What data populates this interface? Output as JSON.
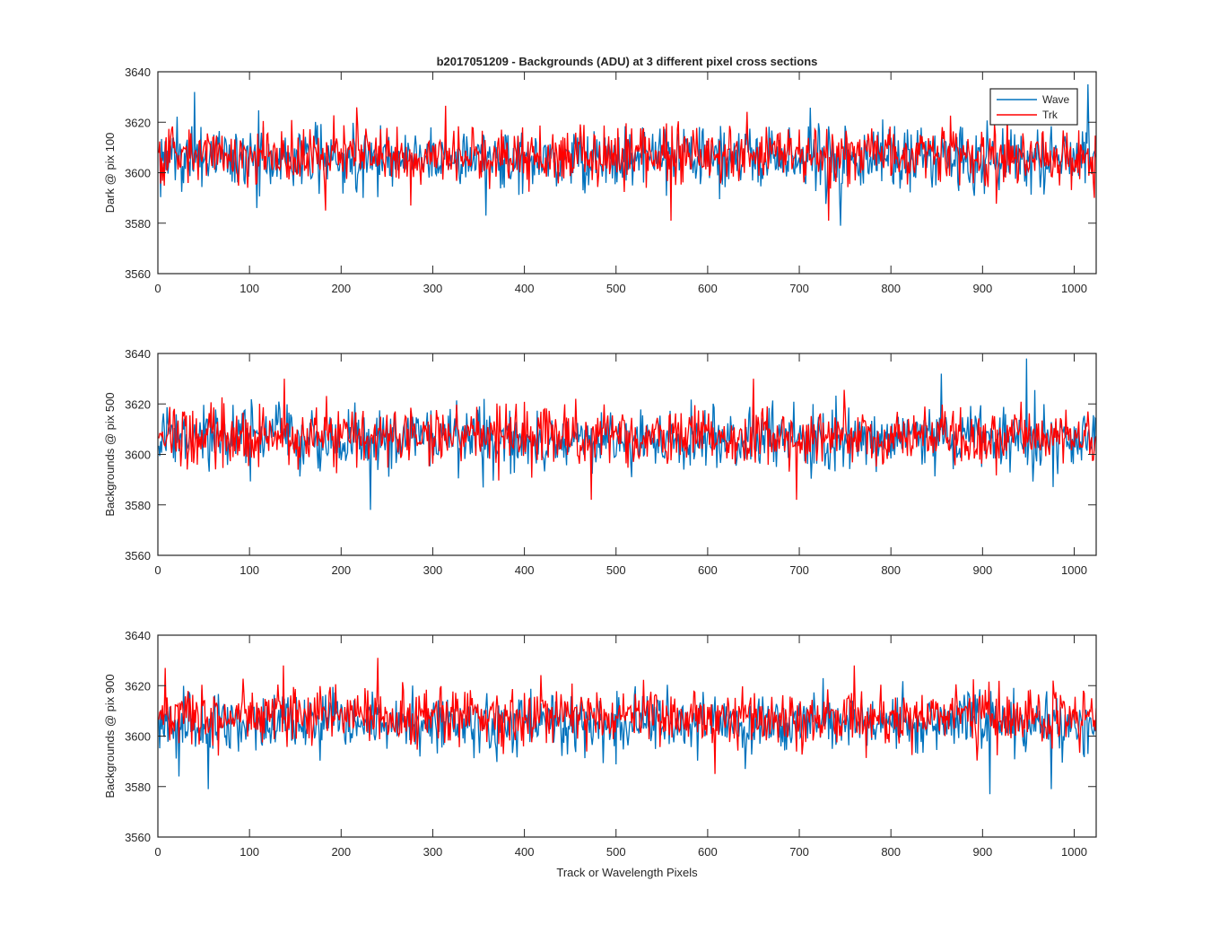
{
  "figure": {
    "title": "b2017051209 - Backgrounds (ADU) at 3 different pixel cross sections",
    "xlabel": "Track or Wavelength Pixels"
  },
  "legend": {
    "placement": "top-right of first panel",
    "entries": [
      {
        "label": "Wave",
        "color": "#0072BD"
      },
      {
        "label": "Trk",
        "color": "#FF0000"
      }
    ]
  },
  "chart_data": [
    {
      "type": "line",
      "ylabel": "Dark @ pix 100",
      "xlim": [
        0,
        1024
      ],
      "ylim": [
        3560,
        3640
      ],
      "xticks": [
        0,
        100,
        200,
        300,
        400,
        500,
        600,
        700,
        800,
        900,
        1000
      ],
      "yticks": [
        3560,
        3580,
        3600,
        3620,
        3640
      ],
      "grid": false,
      "series": [
        {
          "name": "Wave",
          "color": "#0072BD",
          "mean": 3606,
          "std": 6.2,
          "x_step": 1,
          "x_start": 1,
          "x_end": 1024,
          "notable_points": [
            {
              "x": 40,
              "y": 3632
            },
            {
              "x": 108,
              "y": 3586
            },
            {
              "x": 358,
              "y": 3583
            },
            {
              "x": 745,
              "y": 3579
            },
            {
              "x": 1015,
              "y": 3635
            }
          ]
        },
        {
          "name": "Trk",
          "color": "#FF0000",
          "mean": 3607,
          "std": 5.6,
          "x_step": 1,
          "x_start": 1,
          "x_end": 1024,
          "notable_points": [
            {
              "x": 183,
              "y": 3585
            },
            {
              "x": 560,
              "y": 3581
            },
            {
              "x": 732,
              "y": 3581
            },
            {
              "x": 1022,
              "y": 3590
            }
          ]
        }
      ]
    },
    {
      "type": "line",
      "ylabel": "Backgrounds @ pix 500",
      "xlim": [
        0,
        1024
      ],
      "ylim": [
        3560,
        3640
      ],
      "xticks": [
        0,
        100,
        200,
        300,
        400,
        500,
        600,
        700,
        800,
        900,
        1000
      ],
      "yticks": [
        3560,
        3580,
        3600,
        3620,
        3640
      ],
      "grid": false,
      "series": [
        {
          "name": "Wave",
          "color": "#0072BD",
          "mean": 3606,
          "std": 6.0,
          "x_step": 1,
          "x_start": 1,
          "x_end": 1024,
          "notable_points": [
            {
              "x": 232,
              "y": 3578
            },
            {
              "x": 855,
              "y": 3632
            },
            {
              "x": 948,
              "y": 3638
            }
          ]
        },
        {
          "name": "Trk",
          "color": "#FF0000",
          "mean": 3607,
          "std": 5.6,
          "x_step": 1,
          "x_start": 1,
          "x_end": 1024,
          "notable_points": [
            {
              "x": 138,
              "y": 3630
            },
            {
              "x": 650,
              "y": 3630
            },
            {
              "x": 473,
              "y": 3582
            },
            {
              "x": 697,
              "y": 3582
            }
          ]
        }
      ]
    },
    {
      "type": "line",
      "ylabel": "Backgrounds @ pix 900",
      "xlim": [
        0,
        1024
      ],
      "ylim": [
        3560,
        3640
      ],
      "xticks": [
        0,
        100,
        200,
        300,
        400,
        500,
        600,
        700,
        800,
        900,
        1000
      ],
      "yticks": [
        3560,
        3580,
        3600,
        3620,
        3640
      ],
      "grid": false,
      "series": [
        {
          "name": "Wave",
          "color": "#0072BD",
          "mean": 3605,
          "std": 6.0,
          "x_step": 1,
          "x_start": 1,
          "x_end": 1024,
          "notable_points": [
            {
              "x": 55,
              "y": 3579
            },
            {
              "x": 23,
              "y": 3584
            },
            {
              "x": 908,
              "y": 3577
            },
            {
              "x": 975,
              "y": 3579
            }
          ]
        },
        {
          "name": "Trk",
          "color": "#FF0000",
          "mean": 3608,
          "std": 5.8,
          "x_step": 1,
          "x_start": 1,
          "x_end": 1024,
          "notable_points": [
            {
              "x": 240,
              "y": 3631
            },
            {
              "x": 8,
              "y": 3627
            },
            {
              "x": 137,
              "y": 3628
            },
            {
              "x": 608,
              "y": 3585
            }
          ]
        }
      ]
    }
  ]
}
